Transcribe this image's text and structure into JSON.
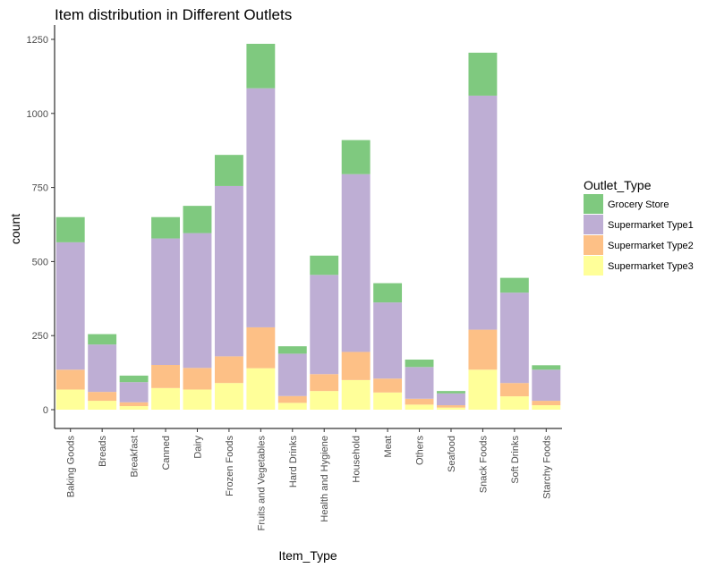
{
  "chart_data": {
    "type": "bar",
    "stacked": true,
    "title": "Item distribution in Different Outlets",
    "xlabel": "Item_Type",
    "ylabel": "count",
    "ylim": [
      0,
      1300
    ],
    "yticks": [
      0,
      250,
      500,
      750,
      1000,
      1250
    ],
    "grid": false,
    "legend_position": "right",
    "legend_title": "Outlet_Type",
    "categories": [
      "Baking Goods",
      "Breads",
      "Breakfast",
      "Canned",
      "Dairy",
      "Frozen Foods",
      "Fruits and Vegetables",
      "Hard Drinks",
      "Health and Hygiene",
      "Household",
      "Meat",
      "Others",
      "Seafood",
      "Snack Foods",
      "Soft Drinks",
      "Starchy Foods"
    ],
    "series": [
      {
        "name": "Grocery Store",
        "color": "#7fc97f",
        "values": [
          85,
          35,
          22,
          72,
          92,
          105,
          150,
          25,
          65,
          115,
          65,
          25,
          8,
          145,
          50,
          15
        ]
      },
      {
        "name": "Supermarket Type1",
        "color": "#beaed4",
        "values": [
          430,
          160,
          68,
          427,
          455,
          575,
          807,
          143,
          335,
          600,
          257,
          107,
          40,
          790,
          305,
          105
        ]
      },
      {
        "name": "Supermarket Type2",
        "color": "#fdc086",
        "values": [
          67,
          30,
          13,
          78,
          73,
          90,
          138,
          23,
          57,
          95,
          47,
          20,
          8,
          135,
          45,
          15
        ]
      },
      {
        "name": "Supermarket Type3",
        "color": "#ffff99",
        "values": [
          68,
          30,
          12,
          73,
          68,
          90,
          140,
          23,
          63,
          100,
          58,
          17,
          7,
          135,
          45,
          15
        ]
      }
    ]
  }
}
